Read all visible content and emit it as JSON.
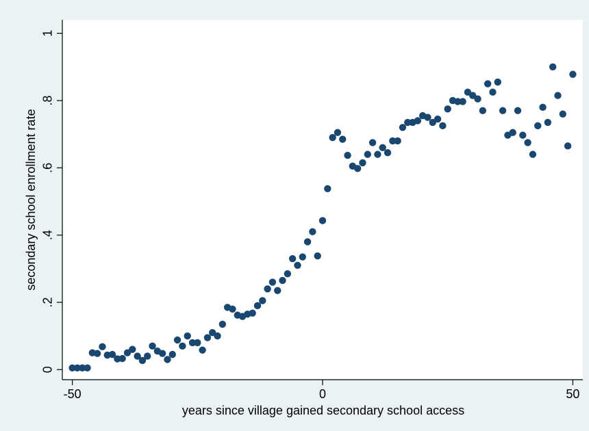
{
  "chart_data": {
    "type": "scatter",
    "x_label": "years since village gained secondary school access",
    "y_label": "secondary school enrollment rate",
    "color": "#1a476f",
    "xlim": [
      -52,
      52
    ],
    "ylim": [
      -0.03,
      1.04
    ],
    "xticks": [
      -50,
      0,
      50
    ],
    "yticks": [
      0,
      {
        "value": 0.2,
        "label": ".2"
      },
      {
        "value": 0.4,
        "label": ".4"
      },
      {
        "value": 0.6,
        "label": ".6"
      },
      {
        "value": 0.8,
        "label": ".8"
      },
      {
        "value": 1,
        "label": "1"
      }
    ],
    "grid": false,
    "x": [
      -50,
      -49,
      -48,
      -47,
      -46,
      -45,
      -44,
      -43,
      -42,
      -41,
      -40,
      -39,
      -38,
      -37,
      -36,
      -35,
      -34,
      -33,
      -32,
      -31,
      -30,
      -29,
      -28,
      -27,
      -26,
      -25,
      -24,
      -23,
      -22,
      -21,
      -20,
      -19,
      -18,
      -17,
      -16,
      -15,
      -14,
      -13,
      -12,
      -11,
      -10,
      -9,
      -8,
      -7,
      -6,
      -5,
      -4,
      -3,
      -2,
      -1,
      0,
      1,
      2,
      3,
      4,
      5,
      6,
      7,
      8,
      9,
      10,
      11,
      12,
      13,
      14,
      15,
      16,
      17,
      18,
      19,
      20,
      21,
      22,
      23,
      24,
      25,
      26,
      27,
      28,
      29,
      30,
      31,
      32,
      33,
      34,
      35,
      36,
      37,
      38,
      39,
      40,
      41,
      42,
      43,
      44,
      45,
      46,
      47,
      48,
      49,
      50
    ],
    "values": [
      0.005,
      0.005,
      0.005,
      0.005,
      0.05,
      0.048,
      0.068,
      0.043,
      0.045,
      0.032,
      0.033,
      0.05,
      0.06,
      0.04,
      0.027,
      0.04,
      0.07,
      0.055,
      0.048,
      0.03,
      0.045,
      0.088,
      0.07,
      0.1,
      0.08,
      0.08,
      0.058,
      0.095,
      0.11,
      0.1,
      0.135,
      0.185,
      0.18,
      0.162,
      0.158,
      0.165,
      0.168,
      0.19,
      0.205,
      0.24,
      0.26,
      0.235,
      0.265,
      0.285,
      0.33,
      0.31,
      0.335,
      0.38,
      0.41,
      0.338,
      0.443,
      0.538,
      0.69,
      0.705,
      0.685,
      0.637,
      0.605,
      0.598,
      0.615,
      0.64,
      0.675,
      0.64,
      0.66,
      0.645,
      0.68,
      0.68,
      0.72,
      0.735,
      0.735,
      0.74,
      0.755,
      0.75,
      0.735,
      0.745,
      0.725,
      0.775,
      0.8,
      0.797,
      0.797,
      0.825,
      0.815,
      0.805,
      0.77,
      0.85,
      0.825,
      0.855,
      0.77,
      0.697,
      0.705,
      0.77,
      0.697,
      0.675,
      0.64,
      0.725,
      0.78,
      0.735,
      0.9,
      0.815,
      0.76,
      0.665,
      0.878
    ]
  }
}
